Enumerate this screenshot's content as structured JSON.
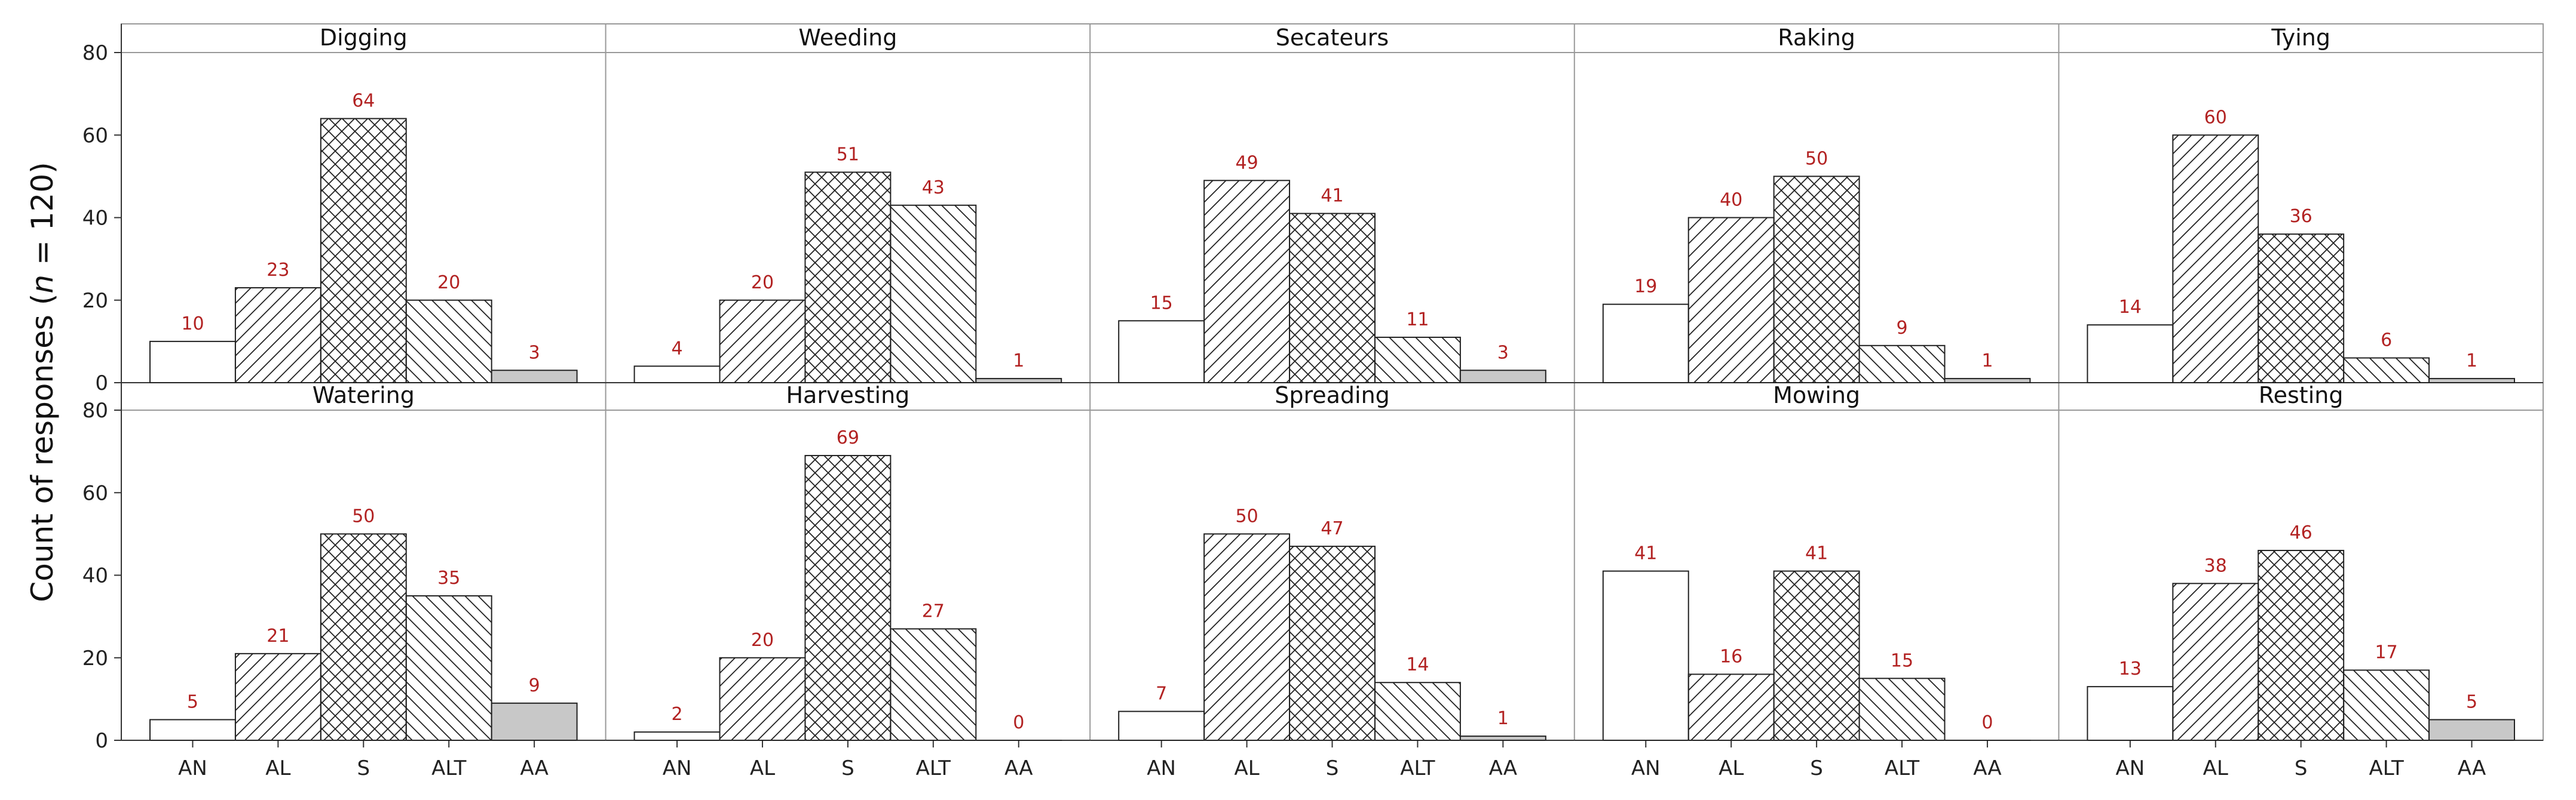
{
  "chart_data": {
    "type": "bar",
    "ylabel_parts": [
      "Count of responses (",
      "n",
      " = 120)"
    ],
    "categories": [
      "AN",
      "AL",
      "S",
      "ALT",
      "AA"
    ],
    "ylim": [
      0,
      80
    ],
    "yticks": [
      "0",
      "20",
      "40",
      "60",
      "80"
    ],
    "grid": false,
    "colors": {
      "value_label": "#b22222",
      "bar_stroke": "#222222",
      "AA_fill": "#c8c8c8",
      "frame": "#999999"
    },
    "panels": [
      {
        "title": "Digging",
        "values": [
          10,
          23,
          64,
          20,
          3
        ]
      },
      {
        "title": "Weeding",
        "values": [
          4,
          20,
          51,
          43,
          1
        ]
      },
      {
        "title": "Secateurs",
        "values": [
          15,
          49,
          41,
          11,
          3
        ]
      },
      {
        "title": "Raking",
        "values": [
          19,
          40,
          50,
          9,
          1
        ]
      },
      {
        "title": "Tying",
        "values": [
          14,
          60,
          36,
          6,
          1
        ]
      },
      {
        "title": "Watering",
        "values": [
          5,
          21,
          50,
          35,
          9
        ]
      },
      {
        "title": "Harvesting",
        "values": [
          2,
          20,
          69,
          27,
          0
        ]
      },
      {
        "title": "Spreading",
        "values": [
          7,
          50,
          47,
          14,
          1
        ]
      },
      {
        "title": "Mowing",
        "values": [
          41,
          16,
          41,
          15,
          0
        ]
      },
      {
        "title": "Resting",
        "values": [
          13,
          38,
          46,
          17,
          5
        ]
      }
    ]
  }
}
